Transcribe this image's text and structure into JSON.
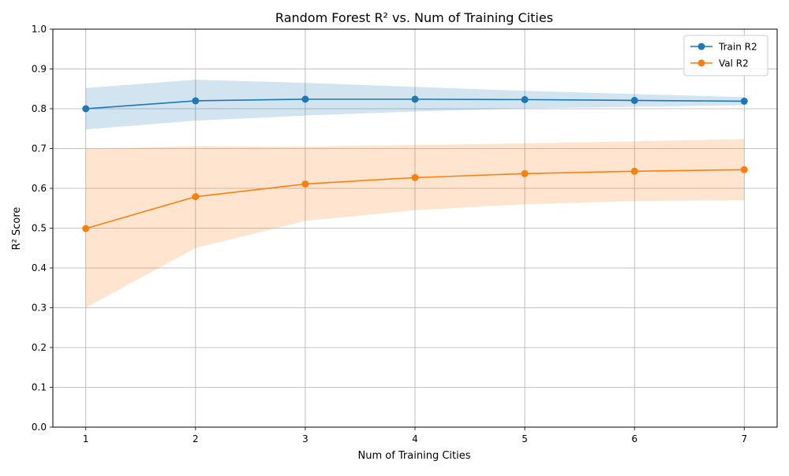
{
  "chart_data": {
    "type": "line",
    "title": "Random Forest R² vs. Num of Training Cities",
    "xlabel": "Num of Training Cities",
    "ylabel": "R² Score",
    "x": [
      1,
      2,
      3,
      4,
      5,
      6,
      7
    ],
    "xlim": [
      0.7,
      7.3
    ],
    "ylim": [
      0.0,
      1.0
    ],
    "x_ticks": [
      "1",
      "2",
      "3",
      "4",
      "5",
      "6",
      "7"
    ],
    "y_ticks": [
      "0.0",
      "0.1",
      "0.2",
      "0.3",
      "0.4",
      "0.5",
      "0.6",
      "0.7",
      "0.8",
      "0.9",
      "1.0"
    ],
    "grid": true,
    "legend_position": "top-right",
    "series": [
      {
        "name": "Train R2",
        "color": "#1f77b4",
        "marker": "circle",
        "values": [
          0.8,
          0.82,
          0.824,
          0.824,
          0.823,
          0.821,
          0.819
        ],
        "band_lower": [
          0.748,
          0.77,
          0.783,
          0.793,
          0.801,
          0.805,
          0.809
        ],
        "band_upper": [
          0.852,
          0.873,
          0.865,
          0.855,
          0.845,
          0.837,
          0.829
        ]
      },
      {
        "name": "Val R2",
        "color": "#ff7f0e",
        "marker": "circle",
        "values": [
          0.499,
          0.579,
          0.611,
          0.627,
          0.637,
          0.643,
          0.647
        ],
        "band_lower": [
          0.3,
          0.45,
          0.518,
          0.545,
          0.56,
          0.568,
          0.57
        ],
        "band_upper": [
          0.699,
          0.706,
          0.705,
          0.709,
          0.713,
          0.718,
          0.724
        ]
      }
    ]
  }
}
